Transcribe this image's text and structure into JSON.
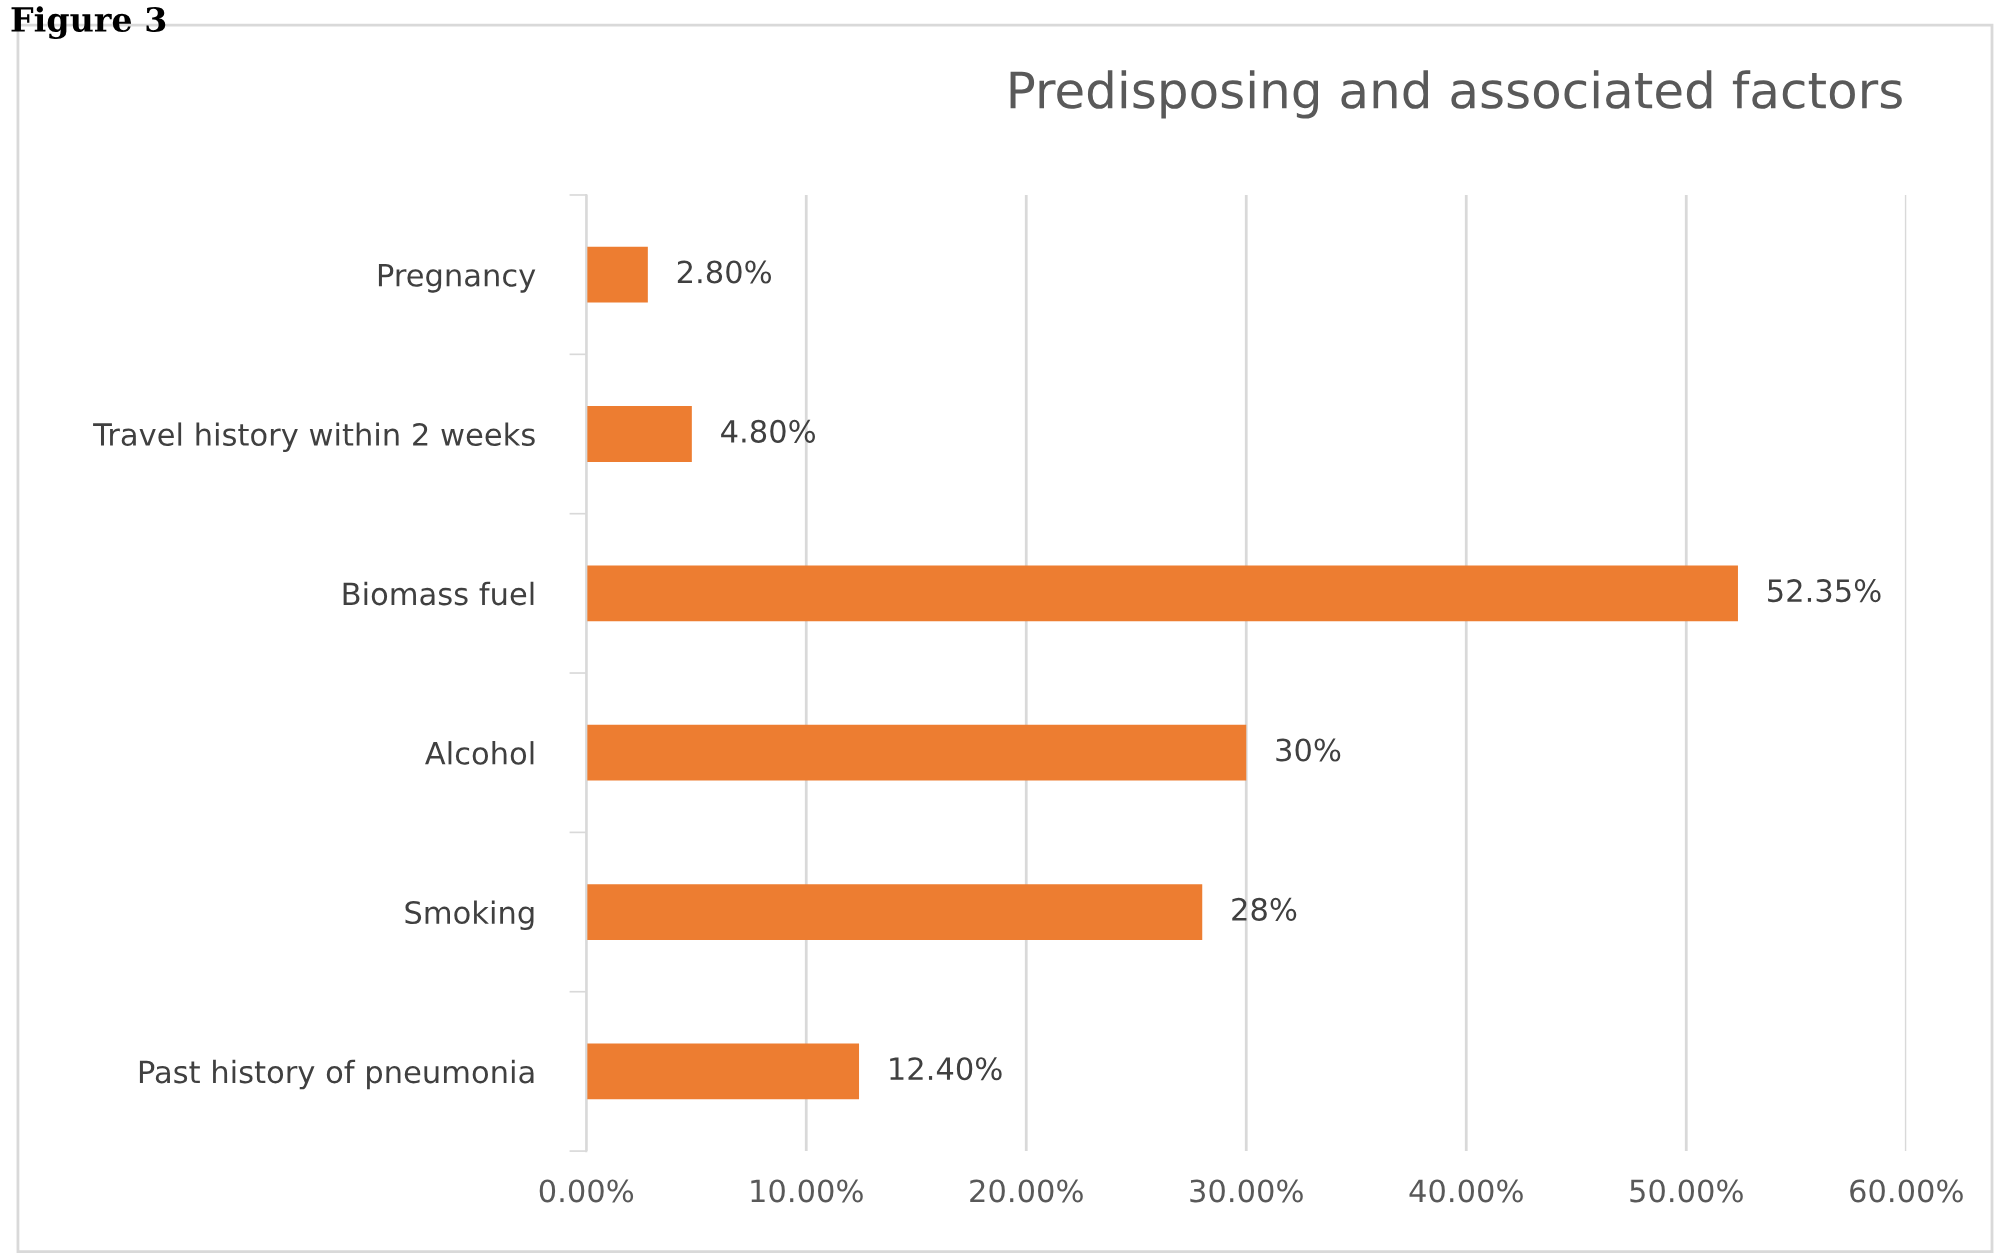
{
  "chart_data": {
    "type": "bar",
    "orientation": "horizontal",
    "title": "Predisposing and associated factors",
    "categories": [
      "Pregnancy",
      "Travel history within 2 weeks",
      "Biomass fuel",
      "Alcohol",
      "Smoking",
      "Past history of pneumonia"
    ],
    "values": [
      2.8,
      4.8,
      52.35,
      30,
      28,
      12.4
    ],
    "value_labels": [
      "2.80%",
      "4.80%",
      "52.35%",
      "30%",
      "28%",
      "12.40%"
    ],
    "color": "#ed7d31",
    "xlim": [
      0,
      60
    ],
    "xticks": [
      {
        "value": 0,
        "label": "0.00%"
      },
      {
        "value": 10,
        "label": "10.00%"
      },
      {
        "value": 20,
        "label": "20.00%"
      },
      {
        "value": 30,
        "label": "30.00%"
      },
      {
        "value": 40,
        "label": "40.00%"
      },
      {
        "value": 50,
        "label": "50.00%"
      },
      {
        "value": 60,
        "label": "60.00%"
      }
    ],
    "grid": "x",
    "annotations": [
      "Figure 3"
    ]
  }
}
